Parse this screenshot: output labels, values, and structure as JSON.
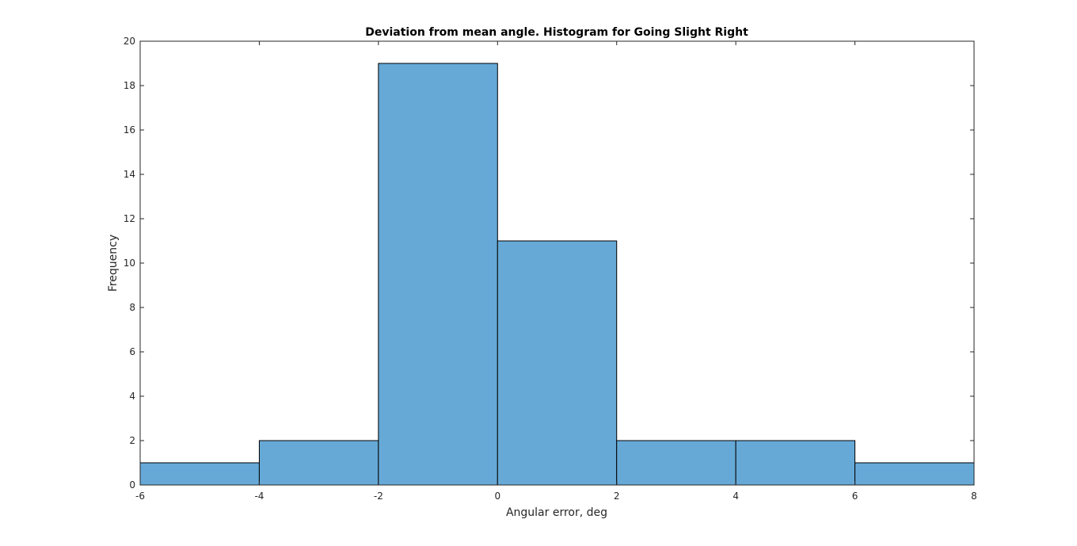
{
  "chart_data": {
    "type": "bar",
    "subtype": "histogram",
    "title": "Deviation from mean angle. Histogram for Going Slight Right",
    "xlabel": "Angular error, deg",
    "ylabel": "Frequency",
    "bin_edges": [
      -6,
      -4,
      -2,
      0,
      2,
      4,
      6,
      8
    ],
    "values": [
      1,
      2,
      19,
      11,
      2,
      2,
      1
    ],
    "xlim": [
      -6,
      8
    ],
    "ylim": [
      0,
      20
    ],
    "xticks": [
      "-6",
      "-4",
      "-2",
      "0",
      "2",
      "4",
      "6",
      "8"
    ],
    "yticks": [
      "0",
      "2",
      "4",
      "6",
      "8",
      "10",
      "12",
      "14",
      "16",
      "18",
      "20"
    ],
    "grid": false,
    "legend": "none",
    "bar_color": "#66a9d7",
    "edge_color": "#000000"
  }
}
